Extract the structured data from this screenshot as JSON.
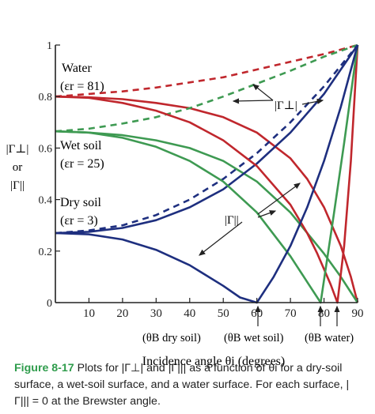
{
  "chart_data": {
    "type": "line",
    "xlabel": "Incidence angle θi (degrees)",
    "xlim": [
      0,
      90
    ],
    "ylim": [
      0,
      1
    ],
    "x_ticks": [
      10,
      20,
      30,
      40,
      50,
      60,
      70,
      80,
      90
    ],
    "y_ticks": [
      0,
      0.2,
      0.4,
      0.6,
      0.8,
      1
    ],
    "y_tick_labels": [
      "0",
      "0.2",
      "0.4",
      "0.6",
      "0.8",
      "1"
    ],
    "ylabel_lines": [
      "|Γ⊥|",
      "or",
      "|Γ||"
    ],
    "grid": false,
    "colors": {
      "water": "#c0272d",
      "wet": "#3e9a52",
      "dry": "#1e2f7f",
      "axis": "#222222"
    },
    "series": [
      {
        "surface": "water",
        "polarization": "perpendicular",
        "style": "solid",
        "x": [
          0,
          10,
          20,
          30,
          40,
          50,
          60,
          70,
          75,
          80,
          85,
          88,
          90
        ],
        "values": [
          0.8,
          0.797,
          0.79,
          0.775,
          0.755,
          0.72,
          0.66,
          0.56,
          0.48,
          0.37,
          0.22,
          0.1,
          0
        ]
      },
      {
        "surface": "water",
        "polarization": "parallel",
        "style": "dashed",
        "x": [
          0,
          10,
          20,
          30,
          40,
          50,
          60,
          70,
          80,
          90
        ],
        "values": [
          0.8,
          0.81,
          0.82,
          0.835,
          0.855,
          0.875,
          0.905,
          0.935,
          0.965,
          1
        ]
      },
      {
        "surface": "wet",
        "polarization": "perpendicular",
        "style": "solid",
        "x": [
          0,
          10,
          20,
          30,
          40,
          50,
          60,
          70,
          80,
          85,
          88,
          90
        ],
        "values": [
          0.665,
          0.66,
          0.65,
          0.63,
          0.6,
          0.55,
          0.47,
          0.35,
          0.19,
          0.1,
          0.04,
          0
        ]
      },
      {
        "surface": "wet",
        "polarization": "parallel",
        "style": "dashed",
        "x": [
          0,
          10,
          20,
          30,
          40,
          50,
          60,
          70,
          80,
          90
        ],
        "values": [
          0.665,
          0.675,
          0.695,
          0.72,
          0.755,
          0.8,
          0.85,
          0.9,
          0.955,
          1
        ]
      },
      {
        "surface": "dry",
        "polarization": "perpendicular",
        "style": "solid",
        "x": [
          0,
          10,
          20,
          30,
          40,
          50,
          60,
          70,
          80,
          90
        ],
        "values": [
          0.27,
          0.275,
          0.29,
          0.32,
          0.37,
          0.44,
          0.54,
          0.66,
          0.81,
          1
        ]
      },
      {
        "surface": "dry",
        "polarization": "parallel",
        "style": "dashed",
        "x": [
          0,
          10,
          20,
          30,
          40,
          50,
          60,
          70,
          80,
          90
        ],
        "values": [
          0.27,
          0.28,
          0.3,
          0.34,
          0.4,
          0.48,
          0.58,
          0.7,
          0.84,
          1
        ]
      },
      {
        "surface": "water",
        "polarization": "parallel-brewster",
        "style": "solid",
        "x": [
          0,
          10,
          20,
          30,
          40,
          50,
          60,
          70,
          75,
          78,
          82,
          84,
          86,
          88,
          90
        ],
        "values": [
          0.8,
          0.795,
          0.775,
          0.745,
          0.7,
          0.63,
          0.53,
          0.38,
          0.27,
          0.19,
          0.07,
          0,
          0.22,
          0.55,
          1
        ]
      },
      {
        "surface": "wet",
        "polarization": "parallel-brewster",
        "style": "solid",
        "x": [
          0,
          10,
          20,
          30,
          40,
          50,
          60,
          70,
          75,
          79,
          83,
          86,
          90
        ],
        "values": [
          0.665,
          0.66,
          0.64,
          0.605,
          0.55,
          0.47,
          0.35,
          0.18,
          0.08,
          0,
          0.35,
          0.62,
          1
        ]
      },
      {
        "surface": "dry",
        "polarization": "parallel-brewster",
        "style": "solid",
        "x": [
          0,
          10,
          20,
          30,
          40,
          50,
          55,
          60,
          65,
          70,
          75,
          80,
          85,
          90
        ],
        "values": [
          0.27,
          0.265,
          0.245,
          0.205,
          0.145,
          0.065,
          0.02,
          0,
          0.1,
          0.22,
          0.37,
          0.55,
          0.76,
          1
        ]
      }
    ],
    "annotations": {
      "water": [
        "Water",
        "(εr = 81)"
      ],
      "wet": [
        "Wet soil",
        "(εr = 25)"
      ],
      "dry": [
        "Dry soil",
        "(εr = 3)"
      ],
      "gamma_perp": "|Γ⊥|",
      "gamma_par": "|Γ||",
      "brewster_dry": "(θB dry soil)",
      "brewster_wet": "(θB wet soil)",
      "brewster_water": "(θB water)"
    }
  },
  "caption": {
    "figure": "Figure 8-17",
    "text": " Plots for |Γ⊥| and |Γ||| as a function of θi for a dry-soil surface, a wet-soil surface, and a water surface. For each surface, |Γ||| = 0 at the Brewster angle."
  }
}
